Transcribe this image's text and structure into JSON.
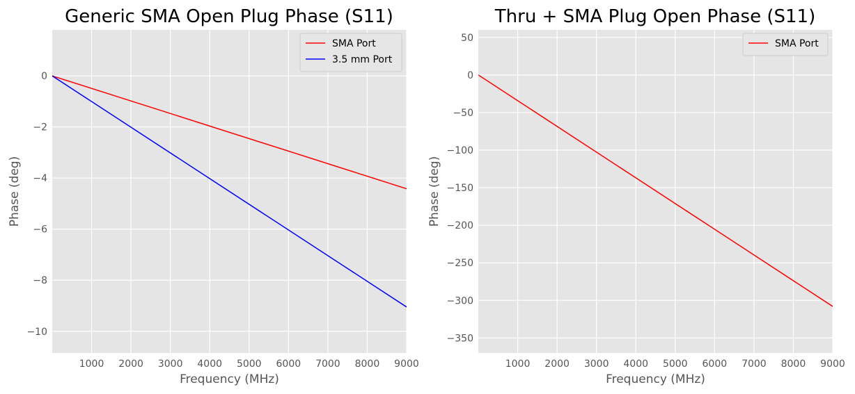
{
  "chart_data": [
    {
      "type": "line",
      "title": "Generic SMA Open Plug Phase (S11)",
      "xlabel": "Frequency (MHz)",
      "ylabel": "Phase (deg)",
      "xlim": [
        0,
        9000
      ],
      "ylim": [
        -10.85,
        1.8
      ],
      "grid": true,
      "legend_position": "top-right",
      "xticks": [
        1000,
        2000,
        3000,
        4000,
        5000,
        6000,
        7000,
        8000,
        9000
      ],
      "xtick_labels": [
        "1000",
        "2000",
        "3000",
        "4000",
        "5000",
        "6000",
        "7000",
        "8000",
        "9000"
      ],
      "yticks": [
        0,
        -2,
        -4,
        -6,
        -8,
        -10
      ],
      "ytick_labels": [
        "0",
        "−2",
        "−4",
        "−6",
        "−8",
        "−10"
      ],
      "series": [
        {
          "name": "SMA Port",
          "color": "#ff0000",
          "x": [
            0,
            9000
          ],
          "y": [
            0,
            -4.42
          ]
        },
        {
          "name": "3.5 mm Port",
          "color": "#0000ff",
          "x": [
            0,
            9000
          ],
          "y": [
            0,
            -9.05
          ]
        }
      ]
    },
    {
      "type": "line",
      "title": "Thru + SMA Plug Open Phase (S11)",
      "xlabel": "Frequency (MHz)",
      "ylabel": "Phase (deg)",
      "xlim": [
        0,
        9000
      ],
      "ylim": [
        -370,
        60
      ],
      "grid": true,
      "legend_position": "top-right",
      "xticks": [
        1000,
        2000,
        3000,
        4000,
        5000,
        6000,
        7000,
        8000,
        9000
      ],
      "xtick_labels": [
        "1000",
        "2000",
        "3000",
        "4000",
        "5000",
        "6000",
        "7000",
        "8000",
        "9000"
      ],
      "yticks": [
        50,
        0,
        -50,
        -100,
        -150,
        -200,
        -250,
        -300,
        -350
      ],
      "ytick_labels": [
        "50",
        "0",
        "−50",
        "−100",
        "−150",
        "−200",
        "−250",
        "−300",
        "−350"
      ],
      "series": [
        {
          "name": "SMA Port",
          "color": "#ff0000",
          "x": [
            0,
            9000
          ],
          "y": [
            0,
            -308
          ]
        }
      ]
    }
  ]
}
